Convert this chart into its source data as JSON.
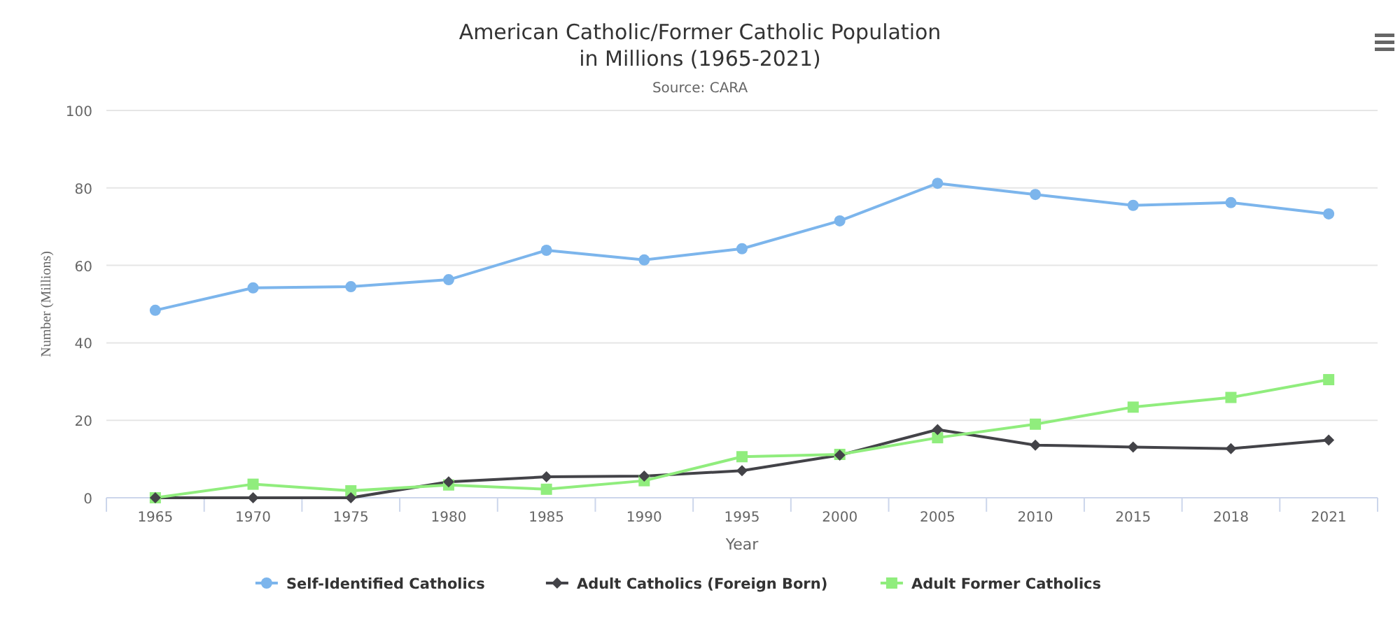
{
  "chart_data": {
    "type": "line",
    "title": "American Catholic/Former Catholic Population\nin Millions (1965-2021)",
    "subtitle": "Source: CARA",
    "xlabel": "Year",
    "ylabel": "Number (Millions)",
    "categories": [
      "1965",
      "1970",
      "1975",
      "1980",
      "1985",
      "1990",
      "1995",
      "2000",
      "2005",
      "2010",
      "2015",
      "2018",
      "2021"
    ],
    "series": [
      {
        "name": "Self-Identified Catholics",
        "color": "#7cb5ec",
        "marker": "circle",
        "values": [
          48.4,
          54.2,
          54.5,
          56.3,
          63.9,
          61.4,
          64.3,
          71.5,
          81.2,
          78.3,
          75.5,
          76.2,
          73.3
        ]
      },
      {
        "name": "Adult Catholics (Foreign Born)",
        "color": "#434348",
        "marker": "diamond",
        "values": [
          0,
          0,
          0,
          4.1,
          5.4,
          5.6,
          7.0,
          11.0,
          17.6,
          13.6,
          13.1,
          12.7,
          14.9
        ]
      },
      {
        "name": "Adult Former Catholics",
        "color": "#90ed7d",
        "marker": "square",
        "values": [
          0,
          3.5,
          1.8,
          3.3,
          2.2,
          4.4,
          10.6,
          11.2,
          15.5,
          19.0,
          23.4,
          25.9,
          30.5
        ]
      }
    ],
    "ylim": [
      0,
      100
    ],
    "yticks": [
      0,
      20,
      40,
      60,
      80,
      100
    ],
    "grid": "y",
    "legend": "bottom"
  }
}
